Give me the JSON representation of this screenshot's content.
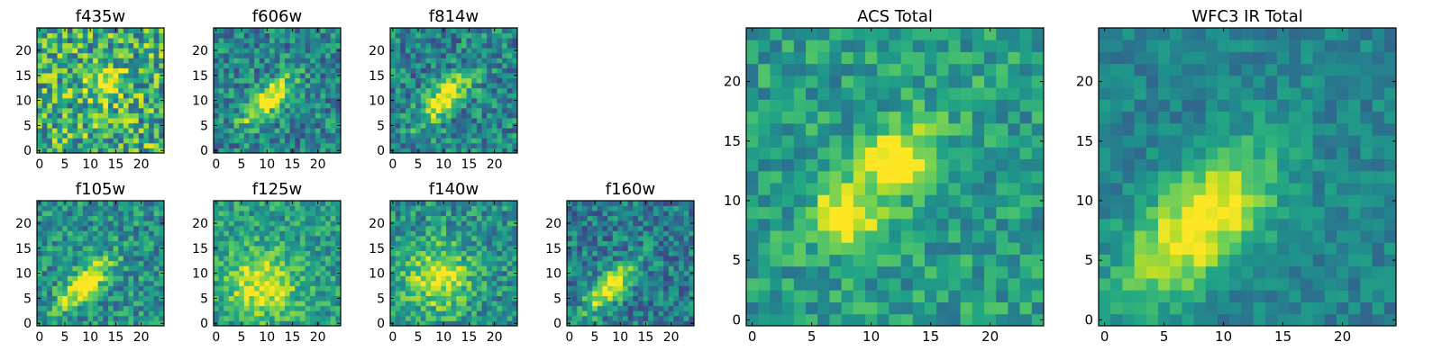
{
  "chart_data": [
    {
      "type": "heatmap",
      "title": "f435w",
      "xticks": [
        "0",
        "5",
        "10",
        "15",
        "20"
      ],
      "yticks": [
        "0",
        "5",
        "10",
        "15",
        "20"
      ],
      "xlim": [
        0,
        25
      ],
      "ylim": [
        0,
        25
      ],
      "grid": false,
      "colormap": "viridis",
      "peak": {
        "x": 13,
        "y": 13
      },
      "shape": "compact",
      "noise": 0.34,
      "background": 0.62
    },
    {
      "type": "heatmap",
      "title": "f606w",
      "xticks": [
        "0",
        "5",
        "10",
        "15",
        "20"
      ],
      "yticks": [
        "0",
        "5",
        "10",
        "15",
        "20"
      ],
      "xlim": [
        0,
        25
      ],
      "ylim": [
        0,
        25
      ],
      "grid": false,
      "colormap": "viridis",
      "peak": {
        "x": 10,
        "y": 10
      },
      "shape": "elongated",
      "noise": 0.24,
      "background": 0.45
    },
    {
      "type": "heatmap",
      "title": "f814w",
      "xticks": [
        "0",
        "5",
        "10",
        "15",
        "20"
      ],
      "yticks": [
        "0",
        "5",
        "10",
        "15",
        "20"
      ],
      "xlim": [
        0,
        25
      ],
      "ylim": [
        0,
        25
      ],
      "grid": false,
      "colormap": "viridis",
      "peak": {
        "x": 10,
        "y": 10
      },
      "shape": "elongated",
      "noise": 0.24,
      "background": 0.45
    },
    {
      "type": "heatmap",
      "title": "f105w",
      "xticks": [
        "0",
        "5",
        "10",
        "15",
        "20"
      ],
      "yticks": [
        "0",
        "5",
        "10",
        "15",
        "20"
      ],
      "xlim": [
        0,
        25
      ],
      "ylim": [
        0,
        25
      ],
      "grid": false,
      "colormap": "viridis",
      "peak": {
        "x": 9,
        "y": 8
      },
      "shape": "elongated",
      "noise": 0.22,
      "background": 0.5
    },
    {
      "type": "heatmap",
      "title": "f125w",
      "xticks": [
        "0",
        "5",
        "10",
        "15",
        "20"
      ],
      "yticks": [
        "0",
        "5",
        "10",
        "15",
        "20"
      ],
      "xlim": [
        0,
        25
      ],
      "ylim": [
        0,
        25
      ],
      "grid": false,
      "colormap": "viridis",
      "peak": {
        "x": 9,
        "y": 8
      },
      "shape": "diffuse",
      "noise": 0.2,
      "background": 0.55
    },
    {
      "type": "heatmap",
      "title": "f140w",
      "xticks": [
        "0",
        "5",
        "10",
        "15",
        "20"
      ],
      "yticks": [
        "0",
        "5",
        "10",
        "15",
        "20"
      ],
      "xlim": [
        0,
        25
      ],
      "ylim": [
        0,
        25
      ],
      "grid": false,
      "colormap": "viridis",
      "peak": {
        "x": 9,
        "y": 9
      },
      "shape": "diffuse",
      "noise": 0.22,
      "background": 0.5
    },
    {
      "type": "heatmap",
      "title": "f160w",
      "xticks": [
        "0",
        "5",
        "10",
        "15",
        "20"
      ],
      "yticks": [
        "0",
        "5",
        "10",
        "15",
        "20"
      ],
      "xlim": [
        0,
        25
      ],
      "ylim": [
        0,
        25
      ],
      "grid": false,
      "colormap": "viridis",
      "peak": {
        "x": 8,
        "y": 7
      },
      "shape": "elongated",
      "noise": 0.22,
      "background": 0.42
    },
    {
      "type": "heatmap",
      "title": "ACS Total",
      "xticks": [
        "0",
        "5",
        "10",
        "15",
        "20"
      ],
      "yticks": [
        "0",
        "5",
        "10",
        "15",
        "20"
      ],
      "xlim": [
        0,
        25
      ],
      "ylim": [
        0,
        25
      ],
      "grid": false,
      "colormap": "viridis",
      "peak": {
        "x": 12,
        "y": 13
      },
      "shape": "double",
      "noise": 0.18,
      "background": 0.55
    },
    {
      "type": "heatmap",
      "title": "WFC3 IR Total",
      "xticks": [
        "0",
        "5",
        "10",
        "15",
        "20"
      ],
      "yticks": [
        "0",
        "5",
        "10",
        "15",
        "20"
      ],
      "xlim": [
        0,
        25
      ],
      "ylim": [
        0,
        25
      ],
      "grid": false,
      "colormap": "viridis",
      "peak": {
        "x": 8,
        "y": 8
      },
      "shape": "smooth",
      "noise": 0.12,
      "background": 0.45
    }
  ]
}
